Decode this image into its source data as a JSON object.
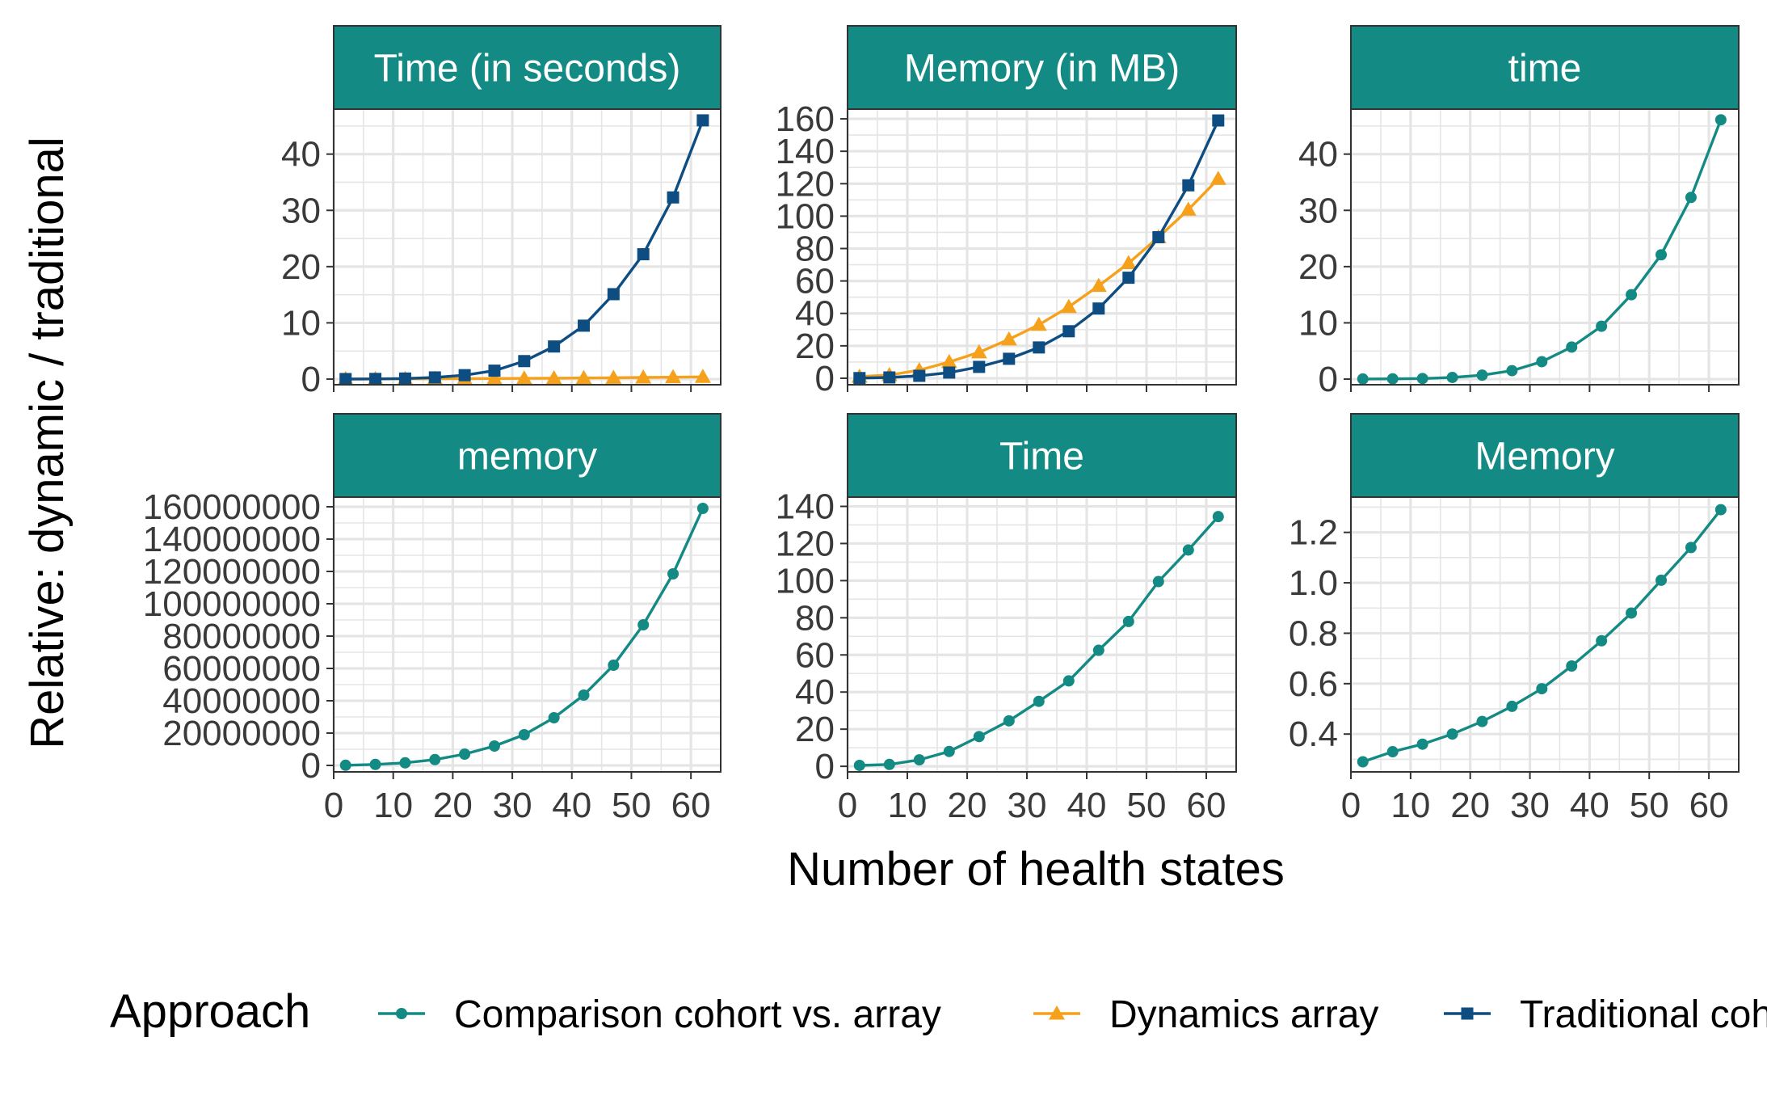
{
  "ylabel": "Relative: dynamic / traditional",
  "xlabel": "Number of health states",
  "legend": {
    "title": "Approach",
    "items": [
      {
        "key": "comparison",
        "label": "Comparison cohort vs. array",
        "color": "#148A84",
        "shape": "circle"
      },
      {
        "key": "dynamics",
        "label": "Dynamics array",
        "color": "#F5A11C",
        "shape": "triangle"
      },
      {
        "key": "traditional",
        "label": "Traditional cohort",
        "color": "#0D4D82",
        "shape": "square"
      }
    ]
  },
  "colors": {
    "strip_bg": "#148A84",
    "grid": "#E5E5E5",
    "panel_border": "#333333"
  },
  "chart_data": [
    {
      "type": "line",
      "title": "Time (in seconds)",
      "x": [
        2,
        7,
        12,
        17,
        22,
        27,
        32,
        37,
        42,
        47,
        52,
        57,
        62
      ],
      "xlim": [
        0,
        65
      ],
      "xticks": [
        0,
        10,
        20,
        30,
        40,
        50,
        60
      ],
      "ylim": [
        -1,
        48
      ],
      "yticks": [
        0,
        10,
        20,
        30,
        40
      ],
      "series": [
        {
          "key": "dynamics",
          "values": [
            0.02,
            0.03,
            0.05,
            0.07,
            0.09,
            0.11,
            0.13,
            0.17,
            0.2,
            0.24,
            0.29,
            0.34,
            0.4
          ]
        },
        {
          "key": "traditional",
          "values": [
            0.01,
            0.03,
            0.1,
            0.3,
            0.7,
            1.5,
            3.2,
            5.8,
            9.5,
            15.1,
            22.2,
            32.3,
            46.0
          ]
        }
      ]
    },
    {
      "type": "line",
      "title": "Memory (in MB)",
      "x": [
        2,
        7,
        12,
        17,
        22,
        27,
        32,
        37,
        42,
        47,
        52,
        57,
        62
      ],
      "xlim": [
        0,
        65
      ],
      "xticks": [
        0,
        10,
        20,
        30,
        40,
        50,
        60
      ],
      "ylim": [
        -4,
        166
      ],
      "yticks": [
        0,
        20,
        40,
        60,
        80,
        100,
        120,
        140,
        160
      ],
      "series": [
        {
          "key": "dynamics",
          "values": [
            1,
            2,
            5,
            10,
            16,
            24,
            33,
            44,
            57,
            71,
            87,
            104,
            123
          ]
        },
        {
          "key": "traditional",
          "values": [
            0.1,
            0.5,
            1.5,
            3.5,
            7,
            12,
            19,
            29,
            43,
            62,
            87,
            119,
            159
          ]
        }
      ]
    },
    {
      "type": "line",
      "title": "time",
      "x": [
        2,
        7,
        12,
        17,
        22,
        27,
        32,
        37,
        42,
        47,
        52,
        57,
        62
      ],
      "xlim": [
        0,
        65
      ],
      "xticks": [
        0,
        10,
        20,
        30,
        40,
        50,
        60
      ],
      "ylim": [
        -1,
        48
      ],
      "yticks": [
        0,
        10,
        20,
        30,
        40
      ],
      "series": [
        {
          "key": "comparison",
          "values": [
            0.02,
            0.05,
            0.1,
            0.3,
            0.7,
            1.5,
            3.1,
            5.7,
            9.4,
            15.0,
            22.1,
            32.3,
            46.1
          ]
        }
      ]
    },
    {
      "type": "line",
      "title": "memory",
      "x": [
        2,
        7,
        12,
        17,
        22,
        27,
        32,
        37,
        42,
        47,
        52,
        57,
        62
      ],
      "xlim": [
        0,
        65
      ],
      "xticks": [
        0,
        10,
        20,
        30,
        40,
        50,
        60
      ],
      "ylim": [
        -4000000,
        166000000
      ],
      "yticks": [
        0,
        20000000,
        40000000,
        60000000,
        80000000,
        100000000,
        120000000,
        140000000,
        160000000
      ],
      "ytick_labels": [
        "0",
        "20000000",
        "40000000",
        "60000000",
        "80000000",
        "100000000",
        "120000000",
        "140000000",
        "160000000"
      ],
      "series": [
        {
          "key": "comparison",
          "values": [
            100000,
            600000,
            1600000,
            3600000,
            7000000,
            12000000,
            19000000,
            29500000,
            43500000,
            62000000,
            87000000,
            118500000,
            159000000
          ]
        }
      ]
    },
    {
      "type": "line",
      "title": "Time",
      "x": [
        2,
        7,
        12,
        17,
        22,
        27,
        32,
        37,
        42,
        47,
        52,
        57,
        62
      ],
      "xlim": [
        0,
        65
      ],
      "xticks": [
        0,
        10,
        20,
        30,
        40,
        50,
        60
      ],
      "ylim": [
        -3,
        145
      ],
      "yticks": [
        0,
        20,
        40,
        60,
        80,
        100,
        120,
        140
      ],
      "series": [
        {
          "key": "comparison",
          "values": [
            0.5,
            1,
            3.5,
            8,
            16,
            24.5,
            35,
            46,
            62.5,
            78,
            99.5,
            116.5,
            134.5
          ]
        }
      ]
    },
    {
      "type": "line",
      "title": "Memory",
      "x": [
        2,
        7,
        12,
        17,
        22,
        27,
        32,
        37,
        42,
        47,
        52,
        57,
        62
      ],
      "xlim": [
        0,
        65
      ],
      "xticks": [
        0,
        10,
        20,
        30,
        40,
        50,
        60
      ],
      "ylim": [
        0.25,
        1.34
      ],
      "yticks": [
        0.4,
        0.6,
        0.8,
        1.0,
        1.2
      ],
      "ytick_labels": [
        "0.4",
        "0.6",
        "0.8",
        "1.0",
        "1.2"
      ],
      "series": [
        {
          "key": "comparison",
          "values": [
            0.29,
            0.33,
            0.36,
            0.4,
            0.45,
            0.51,
            0.58,
            0.67,
            0.77,
            0.88,
            1.01,
            1.14,
            1.29
          ]
        }
      ]
    }
  ]
}
